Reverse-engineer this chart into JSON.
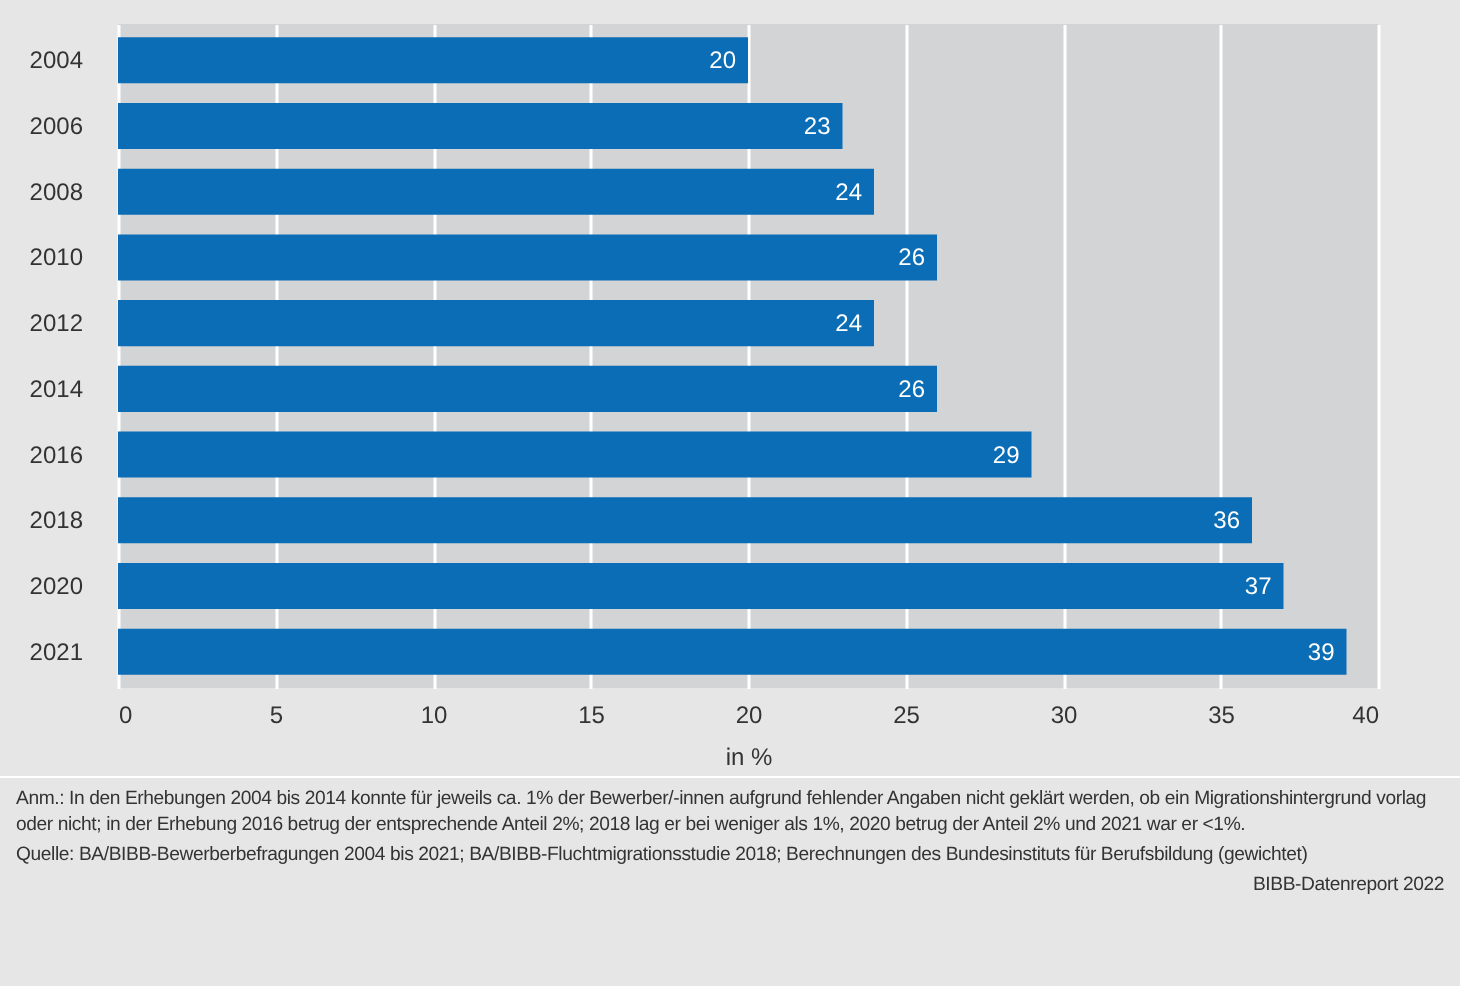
{
  "chart_data": {
    "type": "bar",
    "orientation": "horizontal",
    "xlabel": "in %",
    "categories": [
      "2004",
      "2006",
      "2008",
      "2010",
      "2012",
      "2014",
      "2016",
      "2018",
      "2020",
      "2021"
    ],
    "values": [
      20,
      23,
      24,
      26,
      24,
      26,
      29,
      36,
      37,
      39
    ],
    "color": "#0a6db5",
    "xlim": [
      0,
      40
    ],
    "xticks": [
      0,
      5,
      10,
      15,
      20,
      25,
      30,
      35,
      40
    ],
    "grid": "x",
    "data_labels": true,
    "annotations": [
      "Anm.: In den Erhebungen 2004 bis 2014 konnte für jeweils ca. 1% der Bewerber/-innen aufgrund fehlender Angaben nicht geklärt werden, ob ein Migrationshintergrund vorlag oder nicht; in der Erhebung 2016 betrug der entsprechende Anteil 2%; 2018 lag er bei weniger als 1%, 2020 betrug der Anteil 2% und 2021 war er <1%.",
      "Quelle: BA/BIBB-Bewerberbefragungen 2004 bis 2021; BA/BIBB-Fluchtmigrationsstudie 2018; Berechnungen des Bundesinstituts für Berufsbildung (gewichtet)",
      "BIBB-Datenreport 2022"
    ]
  }
}
